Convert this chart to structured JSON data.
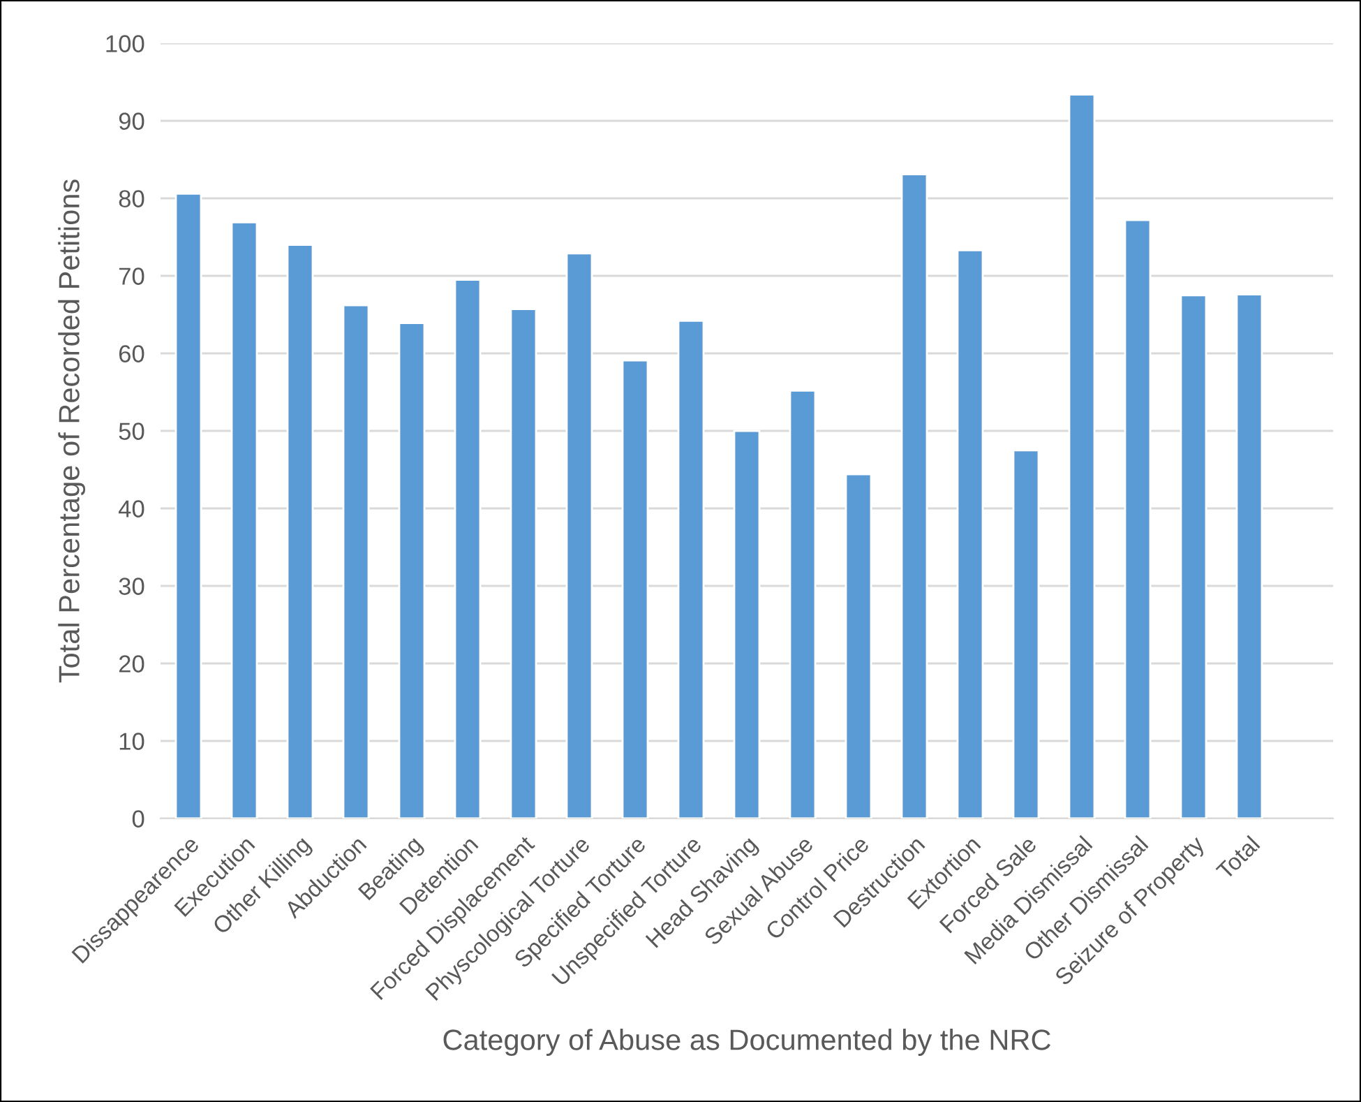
{
  "chart_data": {
    "type": "bar",
    "xlabel": "Category of Abuse as Documented by the NRC",
    "ylabel": "Total Percentage of Recorded Petitions",
    "categories": [
      "Dissappearence",
      "Execution",
      "Other Killing",
      "Abduction",
      "Beating",
      "Detention",
      "Forced Displacement",
      "Physcological Torture",
      "Specified Torture",
      "Unspecified Torture",
      "Head Shaving",
      "Sexual Abuse",
      "Control Price",
      "Destruction",
      "Extortion",
      "Forced Sale",
      "Media Dismissal",
      "Other Dismissal",
      "Seizure of Property",
      "Total"
    ],
    "values": [
      80.6,
      76.9,
      74.0,
      66.2,
      63.9,
      69.5,
      65.7,
      72.9,
      59.1,
      64.2,
      50.0,
      55.2,
      44.4,
      83.1,
      73.3,
      47.5,
      93.4,
      77.2,
      67.5,
      67.6
    ],
    "color": "#5b9bd5",
    "ylim": [
      0,
      100
    ],
    "yticks": [
      0,
      10,
      20,
      30,
      40,
      50,
      60,
      70,
      80,
      90,
      100
    ],
    "grid": "y",
    "legend": false
  }
}
